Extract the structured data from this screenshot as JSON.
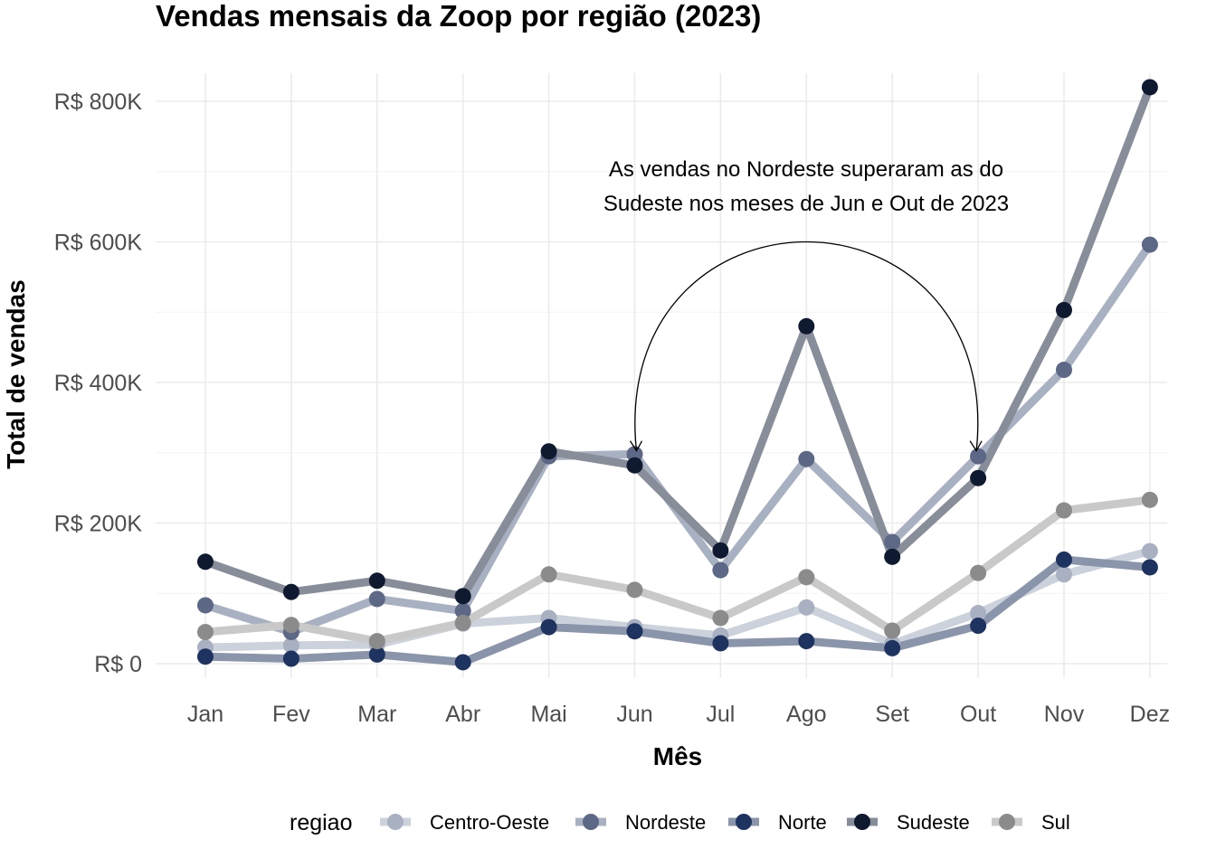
{
  "chart_data": {
    "type": "line",
    "title": "Vendas mensais da Zoop por região (2023)",
    "xlabel": "Mês",
    "ylabel": "Total de vendas",
    "categories": [
      "Jan",
      "Fev",
      "Mar",
      "Abr",
      "Mai",
      "Jun",
      "Jul",
      "Ago",
      "Set",
      "Out",
      "Nov",
      "Dez"
    ],
    "ylim": [
      -20000,
      840000
    ],
    "y_ticks": [
      0,
      200000,
      400000,
      600000,
      800000
    ],
    "y_tick_labels": [
      "R$ 0",
      "R$ 200K",
      "R$ 400K",
      "R$ 600K",
      "R$ 800K"
    ],
    "grid": true,
    "legend_title": "regiao",
    "legend_position": "bottom",
    "series": [
      {
        "name": "Centro-Oeste",
        "line_color": "#ccd2dc",
        "point_color": "#a8b0c2",
        "values": [
          23000,
          26000,
          27000,
          57000,
          65000,
          52000,
          40000,
          80000,
          28000,
          72000,
          127000,
          160000
        ]
      },
      {
        "name": "Nordeste",
        "line_color": "#a8b1c1",
        "point_color": "#5d6886",
        "values": [
          83000,
          45000,
          92000,
          75000,
          295000,
          298000,
          133000,
          291000,
          173000,
          295000,
          418000,
          596000
        ]
      },
      {
        "name": "Norte",
        "line_color": "#8a95ab",
        "point_color": "#1f3360",
        "values": [
          10000,
          7000,
          13000,
          2000,
          52000,
          46000,
          29000,
          32000,
          22000,
          54000,
          148000,
          137000
        ]
      },
      {
        "name": "Sudeste",
        "line_color": "#878d99",
        "point_color": "#0f1a30",
        "values": [
          145000,
          102000,
          118000,
          96000,
          302000,
          282000,
          161000,
          480000,
          152000,
          264000,
          503000,
          820000
        ]
      },
      {
        "name": "Sul",
        "line_color": "#c9c9c9",
        "point_color": "#8b8b8b",
        "values": [
          45000,
          55000,
          32000,
          58000,
          127000,
          105000,
          65000,
          123000,
          47000,
          129000,
          218000,
          233000
        ]
      }
    ],
    "annotation": {
      "lines": [
        "As vendas no Nordeste superaram as do",
        "Sudeste nos meses de Jun e Out de 2023"
      ],
      "arrow_from": {
        "x": "Jun",
        "y": 295000
      },
      "arrow_to": {
        "x": "Out",
        "y": 295000
      },
      "arc_peak_y": 600000
    }
  }
}
